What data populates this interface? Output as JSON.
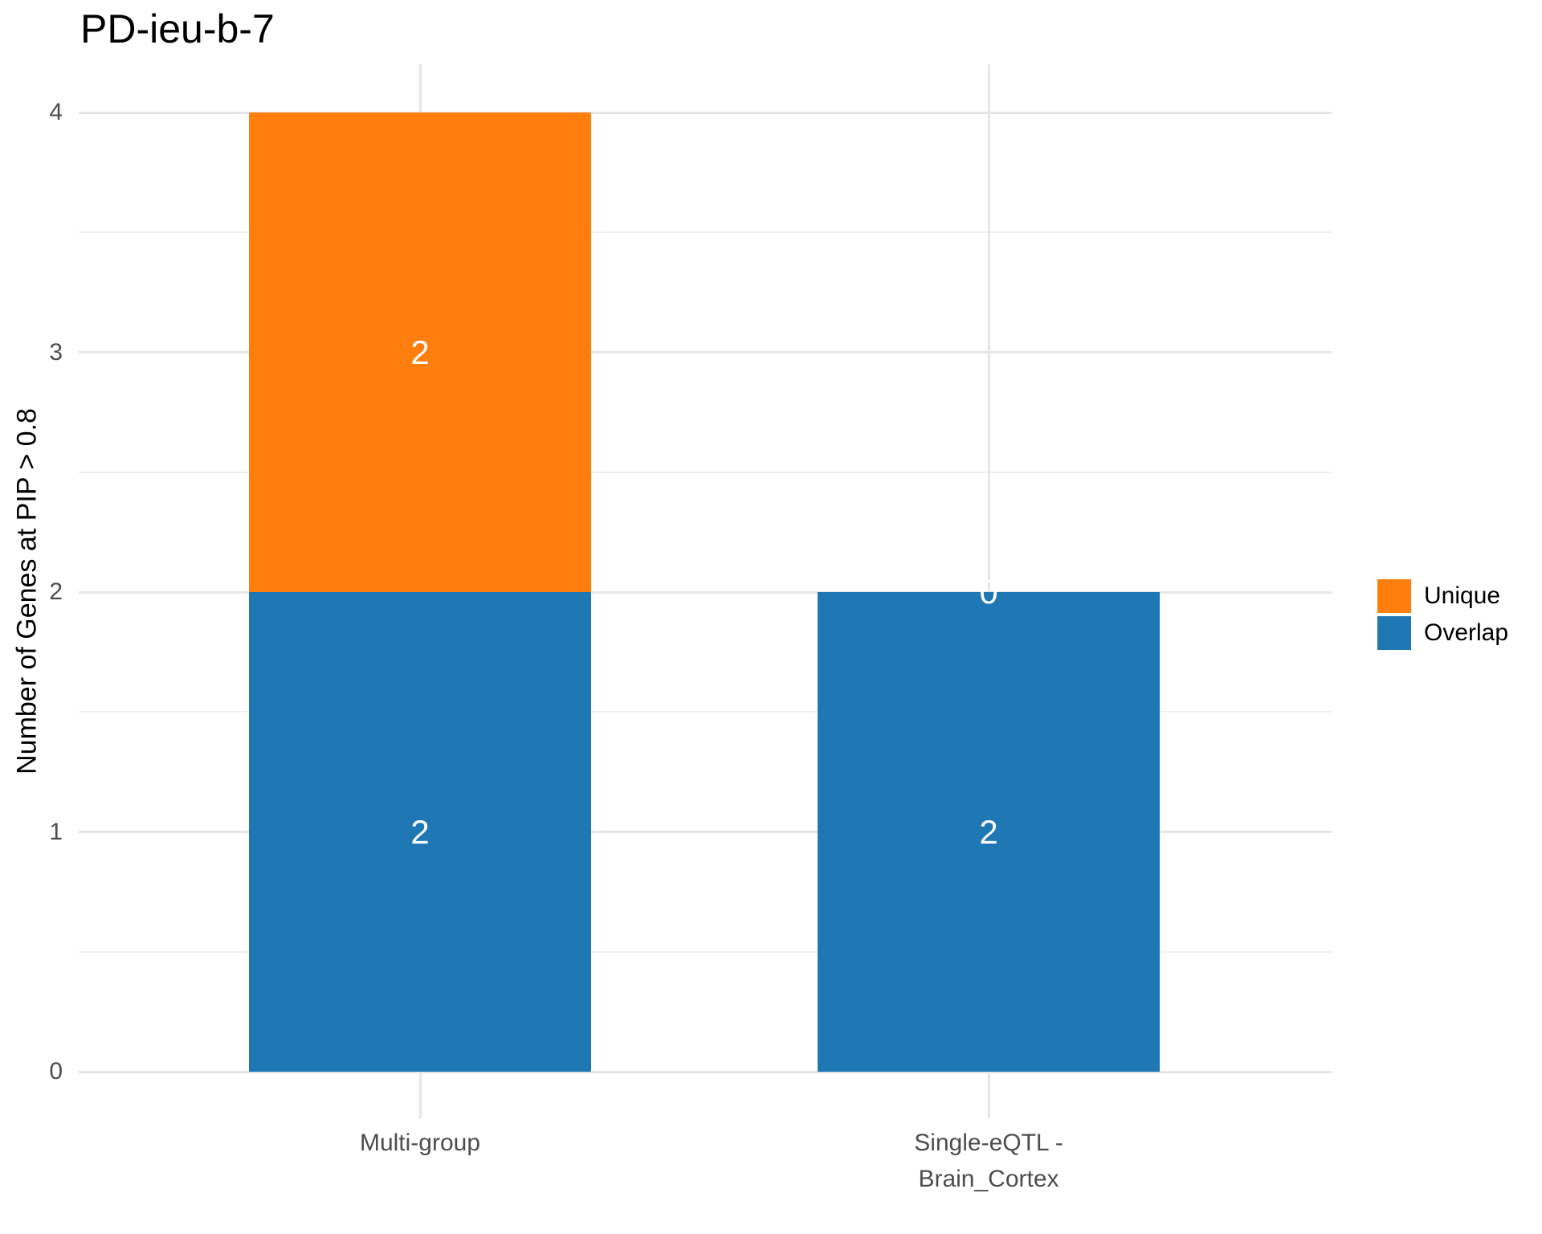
{
  "chart_data": {
    "type": "bar",
    "stacked": true,
    "title": "PD-ieu-b-7",
    "xlabel": "",
    "ylabel": "Number of Genes at PIP > 0.8",
    "categories": [
      "Multi-group",
      "Single-eQTL -\nBrain_Cortex"
    ],
    "series": [
      {
        "name": "Unique",
        "color": "#FF7F0E",
        "values": [
          2,
          0
        ]
      },
      {
        "name": "Overlap",
        "color": "#1F77B4",
        "values": [
          2,
          2
        ]
      }
    ],
    "segment_value_labels": [
      {
        "category": "Multi-group",
        "series": "Unique",
        "label": "2"
      },
      {
        "category": "Multi-group",
        "series": "Overlap",
        "label": "2"
      },
      {
        "category": "Single-eQTL -\nBrain_Cortex",
        "series": "Unique",
        "label": "0"
      },
      {
        "category": "Single-eQTL -\nBrain_Cortex",
        "series": "Overlap",
        "label": "2"
      }
    ],
    "ylim": [
      0,
      4
    ],
    "yticks": [
      0,
      1,
      2,
      3,
      4
    ],
    "grid": "major and minor horizontal gridlines, vertical gridline at each category center",
    "legend_position": "right",
    "background": "#ffffff",
    "tick_label_color": "#4d4d4d",
    "gridline_color": "#e6e6e6",
    "value_label_color": "#ffffff"
  }
}
